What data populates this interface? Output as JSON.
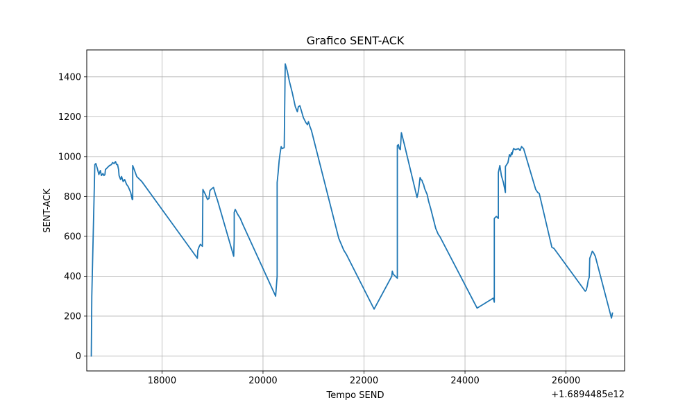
{
  "chart_data": {
    "type": "line",
    "title": "Grafico SENT-ACK",
    "xlabel": "Tempo SEND",
    "ylabel": "SENT-ACK",
    "x_offset_text": "+1.6894485e12",
    "xlim": [
      16510,
      27160
    ],
    "ylim": [
      -75,
      1535
    ],
    "xticks": [
      18000,
      20000,
      22000,
      24000,
      26000
    ],
    "xtick_labels": [
      "18000",
      "20000",
      "22000",
      "24000",
      "26000"
    ],
    "yticks": [
      0,
      200,
      400,
      600,
      800,
      1000,
      1200,
      1400
    ],
    "ytick_labels": [
      "0",
      "200",
      "400",
      "600",
      "800",
      "1000",
      "1200",
      "1400"
    ],
    "grid": true,
    "series": [
      {
        "color": "#1f77b4",
        "points": [
          [
            16600,
            0
          ],
          [
            16610,
            300
          ],
          [
            16670,
            960
          ],
          [
            16690,
            965
          ],
          [
            16720,
            940
          ],
          [
            16750,
            910
          ],
          [
            16780,
            930
          ],
          [
            16800,
            905
          ],
          [
            16830,
            915
          ],
          [
            16850,
            905
          ],
          [
            16870,
            910
          ],
          [
            16880,
            935
          ],
          [
            16920,
            945
          ],
          [
            16960,
            955
          ],
          [
            17000,
            960
          ],
          [
            17020,
            970
          ],
          [
            17050,
            965
          ],
          [
            17080,
            975
          ],
          [
            17100,
            960
          ],
          [
            17120,
            960
          ],
          [
            17140,
            935
          ],
          [
            17150,
            905
          ],
          [
            17180,
            885
          ],
          [
            17200,
            900
          ],
          [
            17230,
            875
          ],
          [
            17260,
            885
          ],
          [
            17300,
            860
          ],
          [
            17330,
            850
          ],
          [
            17380,
            820
          ],
          [
            17410,
            785
          ],
          [
            17420,
            785
          ],
          [
            17420,
            955
          ],
          [
            17450,
            935
          ],
          [
            17500,
            900
          ],
          [
            17600,
            875
          ],
          [
            18700,
            490
          ],
          [
            18710,
            530
          ],
          [
            18730,
            545
          ],
          [
            18760,
            560
          ],
          [
            18800,
            550
          ],
          [
            18810,
            835
          ],
          [
            18830,
            825
          ],
          [
            18860,
            810
          ],
          [
            18900,
            785
          ],
          [
            18930,
            790
          ],
          [
            18950,
            830
          ],
          [
            18990,
            840
          ],
          [
            19020,
            845
          ],
          [
            19060,
            810
          ],
          [
            19100,
            780
          ],
          [
            19420,
            500
          ],
          [
            19430,
            590
          ],
          [
            19430,
            720
          ],
          [
            19450,
            735
          ],
          [
            19500,
            710
          ],
          [
            19550,
            690
          ],
          [
            19600,
            660
          ],
          [
            20250,
            300
          ],
          [
            20280,
            400
          ],
          [
            20280,
            870
          ],
          [
            20300,
            920
          ],
          [
            20320,
            980
          ],
          [
            20340,
            1020
          ],
          [
            20360,
            1050
          ],
          [
            20380,
            1040
          ],
          [
            20420,
            1045
          ],
          [
            20440,
            1465
          ],
          [
            20480,
            1430
          ],
          [
            20520,
            1380
          ],
          [
            20580,
            1320
          ],
          [
            20640,
            1250
          ],
          [
            20680,
            1225
          ],
          [
            20700,
            1250
          ],
          [
            20730,
            1255
          ],
          [
            20760,
            1230
          ],
          [
            20800,
            1195
          ],
          [
            20850,
            1170
          ],
          [
            20880,
            1160
          ],
          [
            20900,
            1175
          ],
          [
            20930,
            1150
          ],
          [
            20960,
            1130
          ],
          [
            21500,
            590
          ],
          [
            21550,
            560
          ],
          [
            21600,
            530
          ],
          [
            21650,
            510
          ],
          [
            22200,
            235
          ],
          [
            22550,
            400
          ],
          [
            22560,
            425
          ],
          [
            22580,
            410
          ],
          [
            22620,
            400
          ],
          [
            22660,
            390
          ],
          [
            22660,
            1055
          ],
          [
            22680,
            1060
          ],
          [
            22700,
            1040
          ],
          [
            22720,
            1035
          ],
          [
            22740,
            1120
          ],
          [
            22800,
            1060
          ],
          [
            23050,
            795
          ],
          [
            23080,
            830
          ],
          [
            23110,
            895
          ],
          [
            23130,
            885
          ],
          [
            23150,
            880
          ],
          [
            23160,
            870
          ],
          [
            23180,
            860
          ],
          [
            23200,
            840
          ],
          [
            23250,
            810
          ],
          [
            23280,
            775
          ],
          [
            23320,
            740
          ],
          [
            23360,
            700
          ],
          [
            23420,
            640
          ],
          [
            23470,
            610
          ],
          [
            23500,
            600
          ],
          [
            24240,
            240
          ],
          [
            24560,
            290
          ],
          [
            24580,
            270
          ],
          [
            24580,
            690
          ],
          [
            24620,
            700
          ],
          [
            24660,
            690
          ],
          [
            24660,
            920
          ],
          [
            24690,
            955
          ],
          [
            24720,
            905
          ],
          [
            24760,
            870
          ],
          [
            24800,
            820
          ],
          [
            24800,
            950
          ],
          [
            24850,
            970
          ],
          [
            24880,
            1010
          ],
          [
            24900,
            1000
          ],
          [
            24920,
            1020
          ],
          [
            24930,
            1010
          ],
          [
            24960,
            1040
          ],
          [
            25000,
            1035
          ],
          [
            25060,
            1040
          ],
          [
            25090,
            1030
          ],
          [
            25120,
            1050
          ],
          [
            25160,
            1040
          ],
          [
            25400,
            835
          ],
          [
            25440,
            820
          ],
          [
            25470,
            815
          ],
          [
            25720,
            545
          ],
          [
            25760,
            540
          ],
          [
            26380,
            325
          ],
          [
            26400,
            330
          ],
          [
            26420,
            350
          ],
          [
            26440,
            380
          ],
          [
            26460,
            395
          ],
          [
            26470,
            490
          ],
          [
            26500,
            510
          ],
          [
            26520,
            525
          ],
          [
            26540,
            520
          ],
          [
            26580,
            500
          ],
          [
            26900,
            190
          ],
          [
            26920,
            215
          ]
        ]
      }
    ]
  }
}
